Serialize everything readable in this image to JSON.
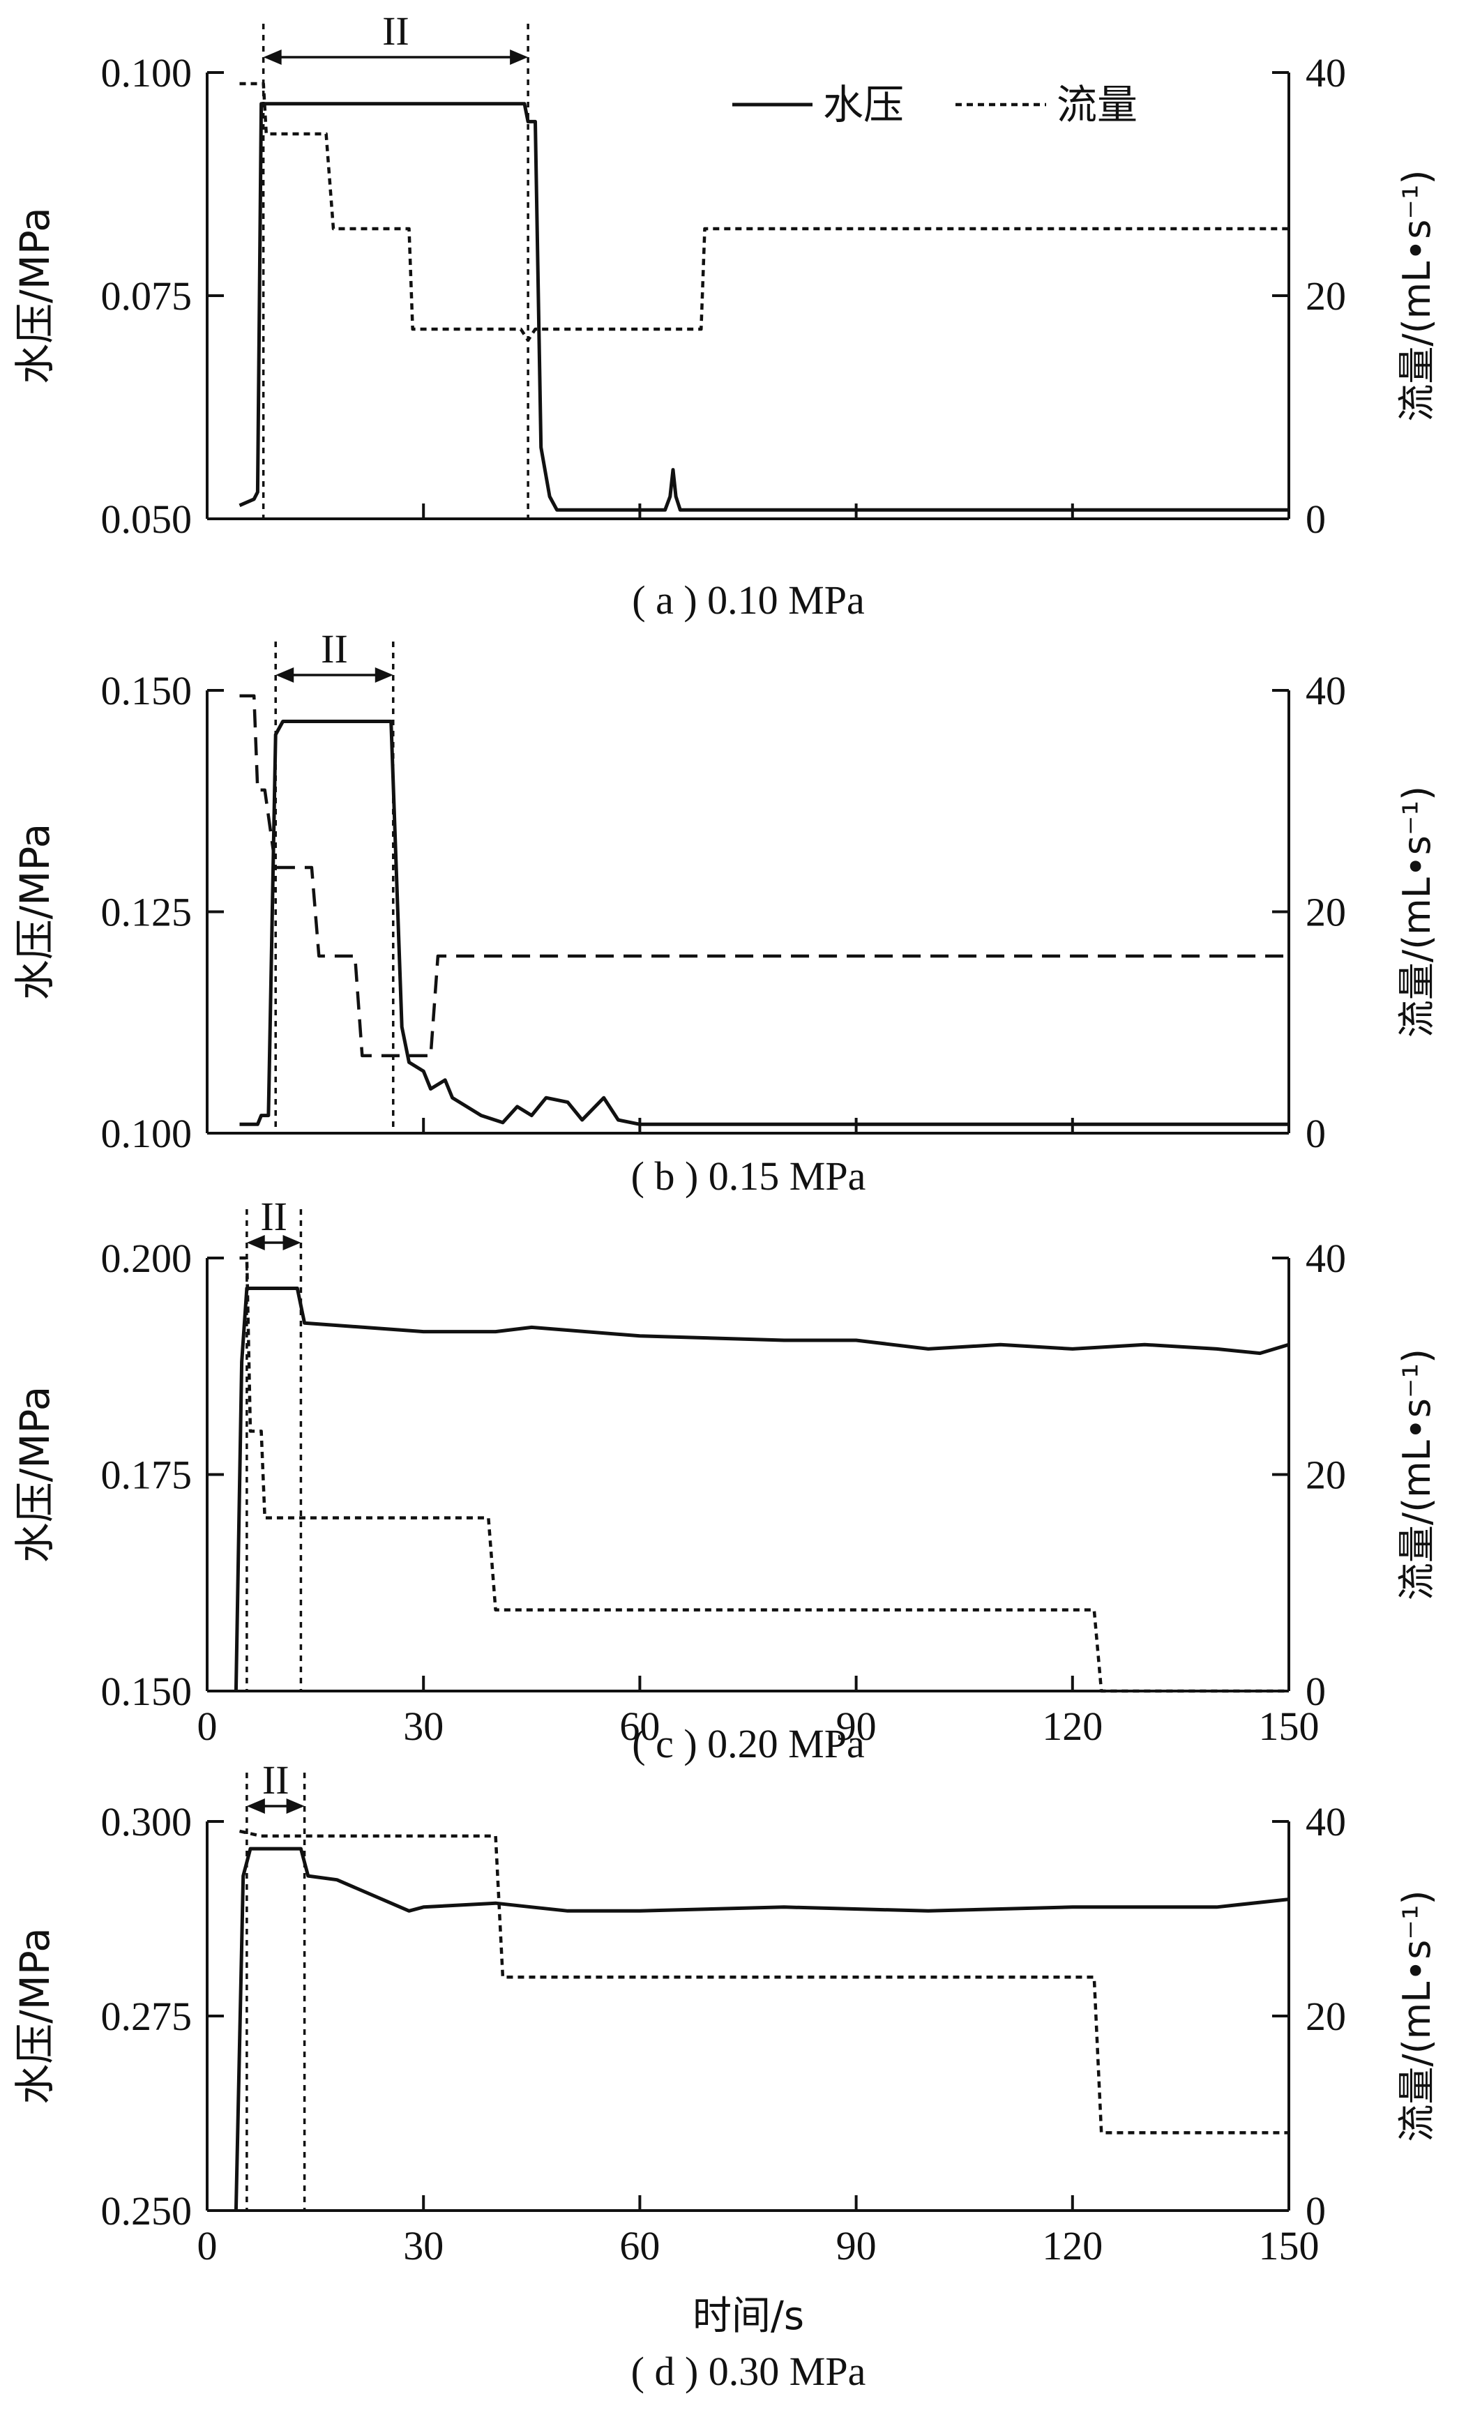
{
  "legend": {
    "pressure_label": "水压",
    "flow_label": "流量"
  },
  "chart_data": [
    {
      "type": "line",
      "caption": "( a ) 0.10 MPa",
      "ylabel": "水压/MPa",
      "y2label": "流量/(mL•s⁻¹)",
      "xlim": [
        0,
        150
      ],
      "ylim": [
        0.05,
        0.1
      ],
      "yticks": [
        "0.050",
        "0.075",
        "0.100"
      ],
      "y2lim": [
        0,
        40
      ],
      "y2ticks": [
        "0",
        "20",
        "40"
      ],
      "stage_label": "II",
      "stage": [
        7.8,
        44.5
      ],
      "series": [
        {
          "name": "水压",
          "axis": "left",
          "style": "solid",
          "points": [
            [
              4.5,
              0.0515
            ],
            [
              6.5,
              0.0522
            ],
            [
              7.0,
              0.053
            ],
            [
              7.5,
              0.0965
            ],
            [
              44.0,
              0.0965
            ],
            [
              44.5,
              0.0945
            ],
            [
              45.5,
              0.0945
            ],
            [
              46.3,
              0.058
            ],
            [
              47.5,
              0.0525
            ],
            [
              48.5,
              0.051
            ],
            [
              63.5,
              0.051
            ],
            [
              64.2,
              0.0525
            ],
            [
              64.6,
              0.0555
            ],
            [
              65.0,
              0.0525
            ],
            [
              65.6,
              0.051
            ],
            [
              150,
              0.051
            ]
          ]
        },
        {
          "name": "流量",
          "axis": "right",
          "style": "dotted",
          "points": [
            [
              4.5,
              39
            ],
            [
              7.8,
              39
            ],
            [
              8.2,
              34.5
            ],
            [
              16.5,
              34.5
            ],
            [
              17.5,
              26
            ],
            [
              28.0,
              26
            ],
            [
              28.5,
              17
            ],
            [
              43.5,
              17
            ],
            [
              44.5,
              16
            ],
            [
              45.5,
              17
            ],
            [
              68.5,
              17
            ],
            [
              69.0,
              26
            ],
            [
              150,
              26
            ]
          ]
        }
      ]
    },
    {
      "type": "line",
      "caption": "( b ) 0.15 MPa",
      "ylabel": "水压/MPa",
      "y2label": "流量/(mL•s⁻¹)",
      "xlim": [
        0,
        150
      ],
      "ylim": [
        0.1,
        0.15
      ],
      "yticks": [
        "0.100",
        "0.125",
        "0.150"
      ],
      "y2lim": [
        0,
        40
      ],
      "y2ticks": [
        "0",
        "20",
        "40"
      ],
      "stage_label": "II",
      "stage": [
        9.5,
        25.8
      ],
      "series": [
        {
          "name": "水压",
          "axis": "left",
          "style": "solid",
          "points": [
            [
              4.5,
              0.101
            ],
            [
              7.0,
              0.101
            ],
            [
              7.5,
              0.102
            ],
            [
              8.5,
              0.102
            ],
            [
              9.5,
              0.145
            ],
            [
              10.5,
              0.1465
            ],
            [
              25.5,
              0.1465
            ],
            [
              27.0,
              0.112
            ],
            [
              28.0,
              0.108
            ],
            [
              30.0,
              0.107
            ],
            [
              31.0,
              0.105
            ],
            [
              33.0,
              0.106
            ],
            [
              34.0,
              0.104
            ],
            [
              36.0,
              0.103
            ],
            [
              38.0,
              0.102
            ],
            [
              41.0,
              0.1012
            ],
            [
              43.0,
              0.103
            ],
            [
              45.0,
              0.102
            ],
            [
              47.0,
              0.104
            ],
            [
              50.0,
              0.1035
            ],
            [
              52.0,
              0.1015
            ],
            [
              55.0,
              0.104
            ],
            [
              57.0,
              0.1015
            ],
            [
              60.0,
              0.101
            ],
            [
              150,
              0.101
            ]
          ]
        },
        {
          "name": "流量",
          "axis": "right",
          "style": "dashed",
          "points": [
            [
              4.5,
              39.5
            ],
            [
              6.5,
              39.5
            ],
            [
              7.0,
              31
            ],
            [
              8.0,
              31
            ],
            [
              9.5,
              24
            ],
            [
              14.5,
              24
            ],
            [
              15.5,
              16
            ],
            [
              20.5,
              16
            ],
            [
              21.5,
              7
            ],
            [
              31.0,
              7
            ],
            [
              32.0,
              16
            ],
            [
              150,
              16
            ]
          ]
        }
      ]
    },
    {
      "type": "line",
      "caption": "( c ) 0.20 MPa",
      "ylabel": "水压/MPa",
      "y2label": "流量/(mL•s⁻¹)",
      "xlim": [
        0,
        150
      ],
      "ylim": [
        0.15,
        0.2
      ],
      "yticks": [
        "0.150",
        "0.175",
        "0.200"
      ],
      "y2lim": [
        0,
        40
      ],
      "y2ticks": [
        "0",
        "20",
        "40"
      ],
      "xticks": [
        "0",
        "30",
        "60",
        "90",
        "120",
        "150"
      ],
      "stage_label": "II",
      "stage": [
        5.5,
        13.0
      ],
      "series": [
        {
          "name": "水压",
          "axis": "left",
          "style": "solid",
          "points": [
            [
              4.0,
              0.15
            ],
            [
              4.8,
              0.188
            ],
            [
              5.5,
              0.1965
            ],
            [
              12.5,
              0.1965
            ],
            [
              13.5,
              0.1925
            ],
            [
              30,
              0.1915
            ],
            [
              40,
              0.1915
            ],
            [
              45,
              0.192
            ],
            [
              60,
              0.191
            ],
            [
              80,
              0.1905
            ],
            [
              90,
              0.1905
            ],
            [
              100,
              0.1895
            ],
            [
              110,
              0.19
            ],
            [
              120,
              0.1895
            ],
            [
              130,
              0.19
            ],
            [
              140,
              0.1895
            ],
            [
              146,
              0.189
            ],
            [
              150,
              0.19
            ]
          ]
        },
        {
          "name": "流量",
          "axis": "right",
          "style": "dotted",
          "points": [
            [
              4.5,
              40
            ],
            [
              5.5,
              40
            ],
            [
              6.0,
              24
            ],
            [
              7.5,
              24
            ],
            [
              8.0,
              16
            ],
            [
              39.0,
              16
            ],
            [
              40.0,
              7.5
            ],
            [
              123,
              7.5
            ],
            [
              124,
              0
            ],
            [
              150,
              0
            ]
          ]
        }
      ]
    },
    {
      "type": "line",
      "caption": "( d ) 0.30 MPa",
      "ylabel": "水压/MPa",
      "y2label": "流量/(mL•s⁻¹)",
      "xlabel": "时间/s",
      "xlim": [
        0,
        150
      ],
      "ylim": [
        0.25,
        0.3
      ],
      "yticks": [
        "0.250",
        "0.275",
        "0.300"
      ],
      "y2lim": [
        0,
        40
      ],
      "y2ticks": [
        "0",
        "20",
        "40"
      ],
      "xticks": [
        "0",
        "30",
        "60",
        "90",
        "120",
        "150"
      ],
      "stage_label": "II",
      "stage": [
        5.5,
        13.5
      ],
      "series": [
        {
          "name": "水压",
          "axis": "left",
          "style": "solid",
          "points": [
            [
              4.0,
              0.25
            ],
            [
              5.0,
              0.293
            ],
            [
              6.0,
              0.2965
            ],
            [
              13.0,
              0.2965
            ],
            [
              14.0,
              0.293
            ],
            [
              18.0,
              0.2925
            ],
            [
              28.0,
              0.2885
            ],
            [
              30.0,
              0.289
            ],
            [
              40.0,
              0.2895
            ],
            [
              45.0,
              0.289
            ],
            [
              50.0,
              0.2885
            ],
            [
              60.0,
              0.2885
            ],
            [
              80.0,
              0.289
            ],
            [
              100.0,
              0.2885
            ],
            [
              120.0,
              0.289
            ],
            [
              140.0,
              0.289
            ],
            [
              150,
              0.29
            ]
          ]
        },
        {
          "name": "流量",
          "axis": "right",
          "style": "dotted",
          "points": [
            [
              4.5,
              39
            ],
            [
              7.5,
              38.5
            ],
            [
              9.5,
              38.5
            ],
            [
              40.0,
              38.5
            ],
            [
              41.0,
              24
            ],
            [
              123.0,
              24
            ],
            [
              124.0,
              8
            ],
            [
              150,
              8
            ]
          ]
        }
      ]
    }
  ]
}
